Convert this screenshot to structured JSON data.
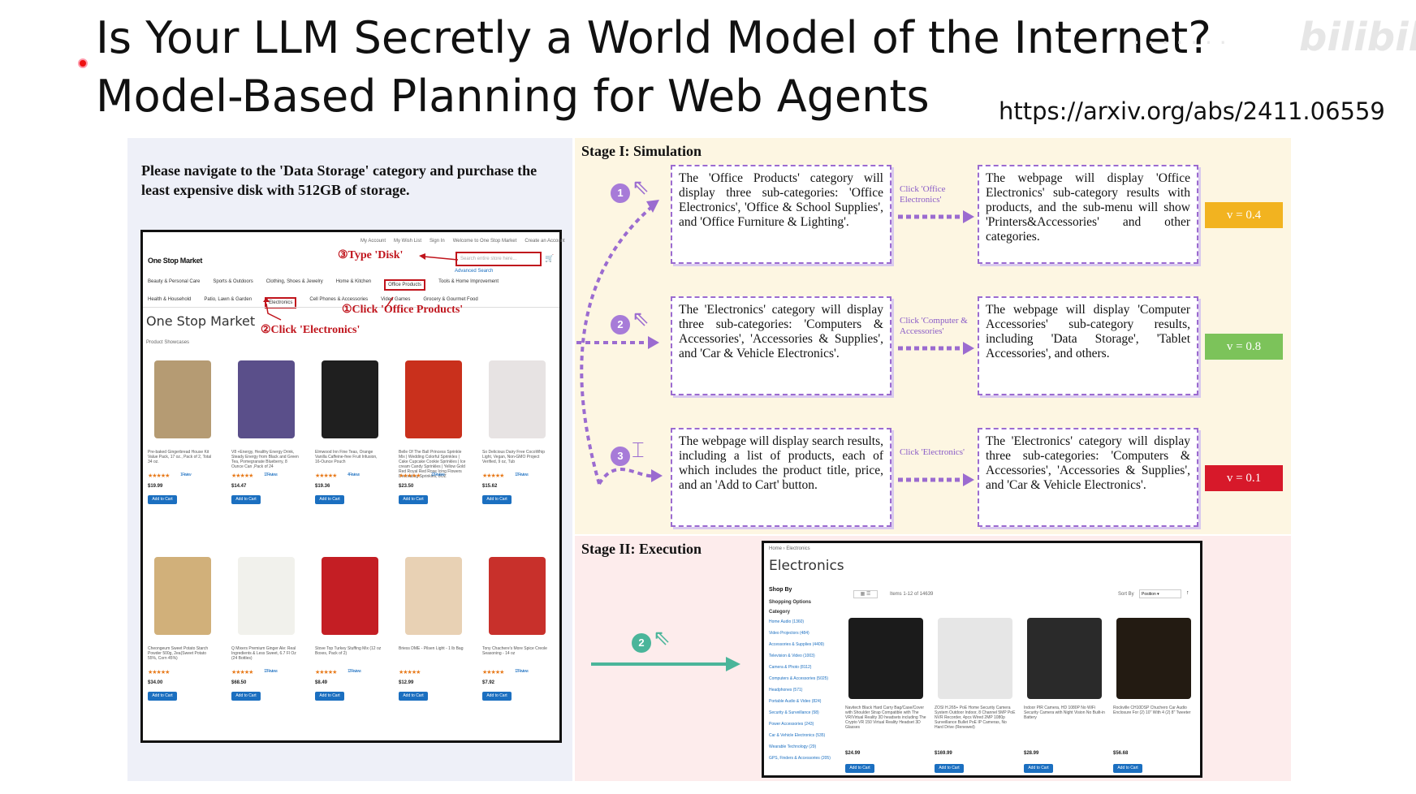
{
  "slide": {
    "title_line1": "Is Your LLM Secretly a World Model of the Internet?",
    "title_line2": "Model-Based Planning for Web Agents",
    "arxiv_url": "https://arxiv.org/abs/2411.06559",
    "watermark": "bilibili",
    "pointer_color": "#e11111"
  },
  "figure": {
    "task": "Please navigate to the 'Data Storage' category and purchase the least expensive disk with 512GB of storage.",
    "store": {
      "header_links": [
        "My Account",
        "My Wish List",
        "Sign In",
        "Welcome to One Stop Market",
        "Create an Account"
      ],
      "logo": "One Stop Market",
      "search_placeholder": "Search entire store here...",
      "advanced_search": "Advanced Search",
      "nav_row1": [
        "Beauty & Personal Care",
        "Sports & Outdoors",
        "Clothing, Shoes & Jewelry",
        "Home & Kitchen",
        "Office Products",
        "Tools & Home Improvement"
      ],
      "nav_row2": [
        "Health & Household",
        "Patio, Lawn & Garden",
        "Electronics",
        "Cell Phones & Accessories",
        "Video Games",
        "Grocery & Gourmet Food"
      ],
      "page_heading": "One Stop Market",
      "showcase_label": "Product Showcases",
      "annotations": {
        "type_disk": "③Type 'Disk'",
        "click_office": "①Click 'Office Products'",
        "click_electronics": "②Click 'Electronics'"
      },
      "add_to_cart": "Add to Cart",
      "reviews_label": "Reviews",
      "products_row1": [
        {
          "name": "Pre-baked Gingerbread House Kit Value Pack, 17 oz., Pack of 2, Total 34 oz.",
          "price": "$19.99",
          "reviews": "1 Review"
        },
        {
          "name": "V8 +Energy, Healthy Energy Drink, Steady Energy from Black and Green Tea, Pomegranate Blueberry, 8 Ounce Can ,Pack of 24",
          "price": "$14.47",
          "reviews": "12 Reviews"
        },
        {
          "name": "Elmwood Inn Fine Teas, Orange Vanilla Caffeine-free Fruit Infusion, 16-Ounce Pouch",
          "price": "$19.36",
          "reviews": "4 Reviews"
        },
        {
          "name": "Belle Of The Ball Princess Sprinkle Mix | Wedding Colorful Sprinkles | Cake Cupcake Cookie Sprinkles | Ice cream Candy Sprinkles | Yellow Gold Red Royal Red Rose Icing Flowers Decorating Sprinkles, 8OZ",
          "price": "$23.50",
          "reviews": "12 Reviews"
        },
        {
          "name": "So Delicious Dairy Free CocoWhip Light, Vegan, Non-GMO Project Verified, 9 oz, Tub",
          "price": "$15.62",
          "reviews": "12 Reviews"
        }
      ],
      "products_row2": [
        {
          "name": "Cheongeum Sweet Potato Starch Powder 500g, 2ea(Sweet Potato 55%, Corn 45%)",
          "price": "$34.00",
          "reviews": ""
        },
        {
          "name": "Q Mixers Premium Ginger Ale: Real Ingredients & Less Sweet, 6.7 Fl Oz (24 Bottles)",
          "price": "$68.50",
          "reviews": "12 Reviews"
        },
        {
          "name": "Stove Top Turkey Stuffing Mix (12 oz Boxes, Pack of 2)",
          "price": "$8.49",
          "reviews": "12 Reviews"
        },
        {
          "name": "Briess DME - Pilsen Light - 1 lb Bag",
          "price": "$12.99",
          "reviews": ""
        },
        {
          "name": "Tony Chachere's More Spice Creole Seasoning - 14 oz",
          "price": "$7.92",
          "reviews": "12 Reviews"
        }
      ]
    },
    "stage1": {
      "label": "Stage I: Simulation",
      "rows": [
        {
          "num": "1",
          "sim1": "The 'Office Products' category will display three sub-categories: 'Office Electronics', 'Office & School Supplies', and 'Office Furniture & Lighting'.",
          "click": "Click 'Office Electronics'",
          "sim2": "The webpage will display 'Office Electronics' sub-category results with products, and the sub-menu will show 'Printers&Accessories' and other categories.",
          "value": "v = 0.4",
          "color": "#f2b320"
        },
        {
          "num": "2",
          "sim1": "The 'Electronics' category will display three sub-categories: 'Computers & Accessories', 'Accessories & Supplies', and 'Car & Vehicle Electronics'.",
          "click": "Click 'Computer & Accessories'",
          "sim2": "The webpage will display 'Computer Accessories' sub-category results, including 'Data Storage', 'Tablet Accessories', and others.",
          "value": "v = 0.8",
          "color": "#7cc35a"
        },
        {
          "num": "3",
          "sim1": "The webpage will display search results, including a list of products, each of which includes the product title, price, and an 'Add to Cart' button.",
          "click": "Click 'Electronics'",
          "sim2": "The 'Electronics' category will display three sub-categories: 'Computers & Accessories', 'Accessories & Supplies', and 'Car & Vehicle Electronics'.",
          "value": "v = 0.1",
          "color": "#d7192a"
        }
      ]
    },
    "stage2": {
      "label": "Stage II: Execution",
      "step": "2",
      "page": {
        "breadcrumb": "Home › Electronics",
        "heading": "Electronics",
        "shop_by": "Shop By",
        "shopping_options": "Shopping Options",
        "category": "Category",
        "items_label": "Items 1-12 of 14639",
        "sort_label": "Sort By",
        "sort_value": "Position",
        "sidebar_links": [
          "Home Audio (1360)",
          "Video Projectors (484)",
          "Accessories & Supplies (4409)",
          "Television & Video (1003)",
          "Camera & Photo (8112)",
          "Computers & Accessories (5025)",
          "Headphones (571)",
          "Portable Audio & Video (824)",
          "Security & Surveillance (58)",
          "Power Accessories (243)",
          "Car & Vehicle Electronics (535)",
          "Wearable Technology (29)",
          "GPS, Finders & Accessories (205)"
        ],
        "products": [
          {
            "name": "Navitech Black Hard Carry Bag/Case/Cover with Shoulder Strap Compatible with The VR/Virtual Reality 3D headsets including The Crypto VR 150 Virtual Reality Headset 3D Glasses",
            "price": "$24.99"
          },
          {
            "name": "ZOSI H.265+ PoE Home Security Camera System Outdoor Indoor, 8 Channel 5MP PoE NVR Recorder, 4pcs Wired 2MP 1080p Surveillance Bullet PoE IP Cameras, No Hard Drive (Renewed)",
            "price": "$169.99"
          },
          {
            "name": "Indoor PIR Camera, HD 1080P No WiFi Security Camera with Night Vision No Built-in Battery",
            "price": "$28.99"
          },
          {
            "name": "Rockville CH10DSP Chuchero Car Audio Enclosure For (2) 10\" With 4 (2) 8\" Tweeter",
            "price": "$56.68"
          }
        ]
      }
    }
  }
}
